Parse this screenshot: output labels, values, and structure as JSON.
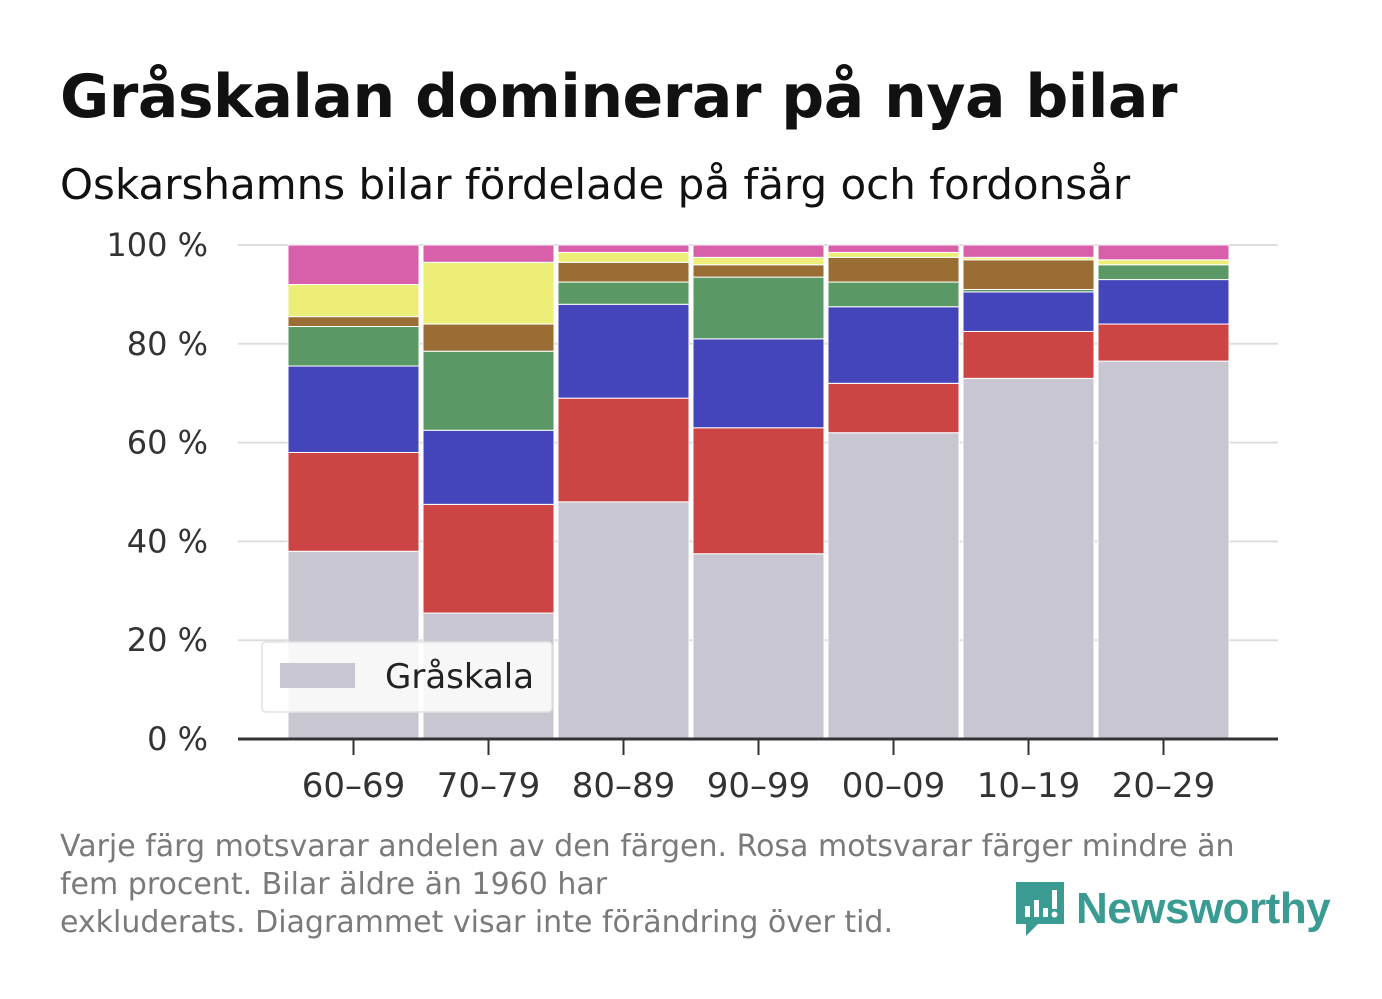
{
  "title": "Gråskalan dominerar på nya bilar",
  "subtitle": "Oskarshamns bilar fördelade på färg och fordonsår",
  "footnote": {
    "line1": "Varje färg motsvarar andelen av den färgen. Rosa motsvarar färger mindre än",
    "line2": "fem procent. Bilar äldre än 1960 har",
    "line3": "exkluderats. Diagrammet visar inte förändring över tid."
  },
  "logo": {
    "text": "Newsworthy",
    "icon": "newsworthy-chart-bubble-icon",
    "color": "#3a9b93"
  },
  "chart_data": {
    "type": "bar",
    "stacked": true,
    "categories": [
      "60–69",
      "70–79",
      "80–89",
      "90–99",
      "00–09",
      "10–19",
      "20–29"
    ],
    "ylim": [
      0,
      100
    ],
    "yticks": [
      0,
      20,
      40,
      60,
      80,
      100
    ],
    "ytick_labels": [
      "0 %",
      "20 %",
      "40 %",
      "60 %",
      "80 %",
      "100 %"
    ],
    "grid": true,
    "legend": {
      "placement": "bottom-left",
      "entries": [
        "Gråskala"
      ]
    },
    "series": [
      {
        "name": "Gråskala",
        "color": "#c8c6d0",
        "values": [
          38.0,
          25.5,
          48.0,
          37.5,
          62.0,
          73.0,
          76.5
        ]
      },
      {
        "color": "#cc4444",
        "values": [
          20.0,
          22.0,
          21.0,
          25.5,
          10.0,
          9.5,
          7.5
        ]
      },
      {
        "color": "#4444bb",
        "values": [
          17.5,
          15.0,
          19.0,
          18.0,
          15.5,
          8.0,
          9.0
        ]
      },
      {
        "color": "#5a9966",
        "values": [
          8.0,
          16.0,
          4.5,
          12.5,
          5.0,
          0.5,
          3.0
        ]
      },
      {
        "color": "#9a6d35",
        "values": [
          2.0,
          5.5,
          4.0,
          2.5,
          5.0,
          6.0,
          0.0
        ]
      },
      {
        "color": "#ecee77",
        "values": [
          6.5,
          12.5,
          2.0,
          1.5,
          1.0,
          0.5,
          1.0
        ]
      },
      {
        "color": "#d85faa",
        "values": [
          8.0,
          3.5,
          1.5,
          2.5,
          1.5,
          2.5,
          3.0
        ]
      }
    ]
  }
}
